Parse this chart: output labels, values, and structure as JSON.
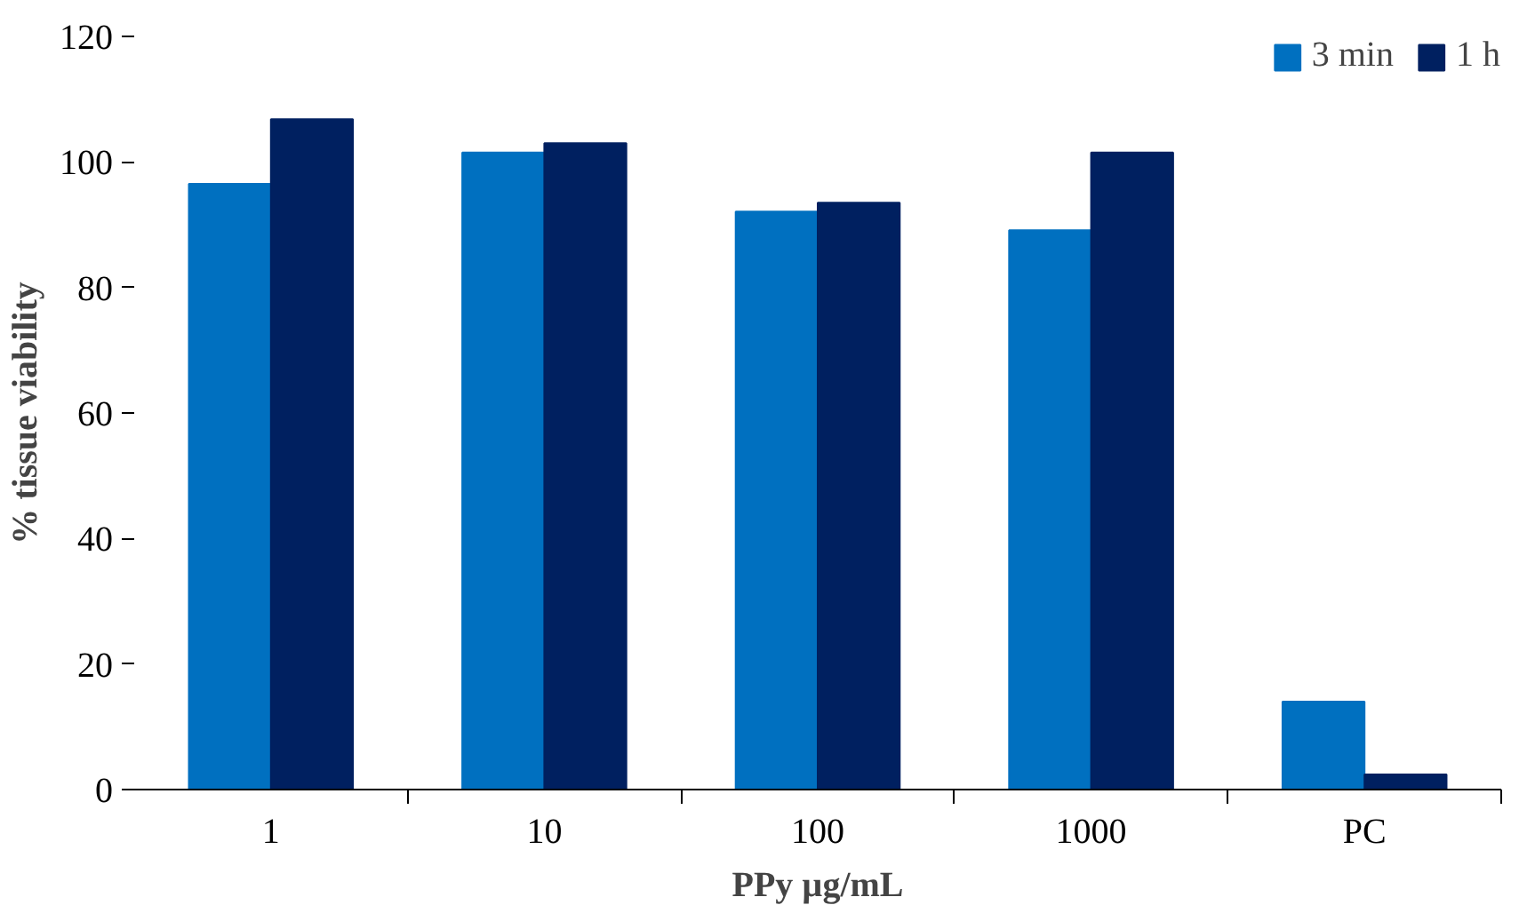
{
  "chart_data": {
    "type": "bar",
    "xlabel": "PPy µg/mL",
    "ylabel": "% tissue viability",
    "categories": [
      "1",
      "10",
      "100",
      "1000",
      "PC"
    ],
    "series": [
      {
        "name": "3 min",
        "color": "#0070c0",
        "values": [
          96.5,
          101.5,
          92.1,
          89.1,
          14
        ]
      },
      {
        "name": "1 h",
        "color": "#002060",
        "values": [
          106.8,
          103,
          93.5,
          101.5,
          2.4
        ]
      }
    ],
    "ylim": [
      0,
      120
    ],
    "yticks": [
      0,
      20,
      40,
      60,
      80,
      100,
      120
    ],
    "grid": false,
    "legend": "top right"
  }
}
